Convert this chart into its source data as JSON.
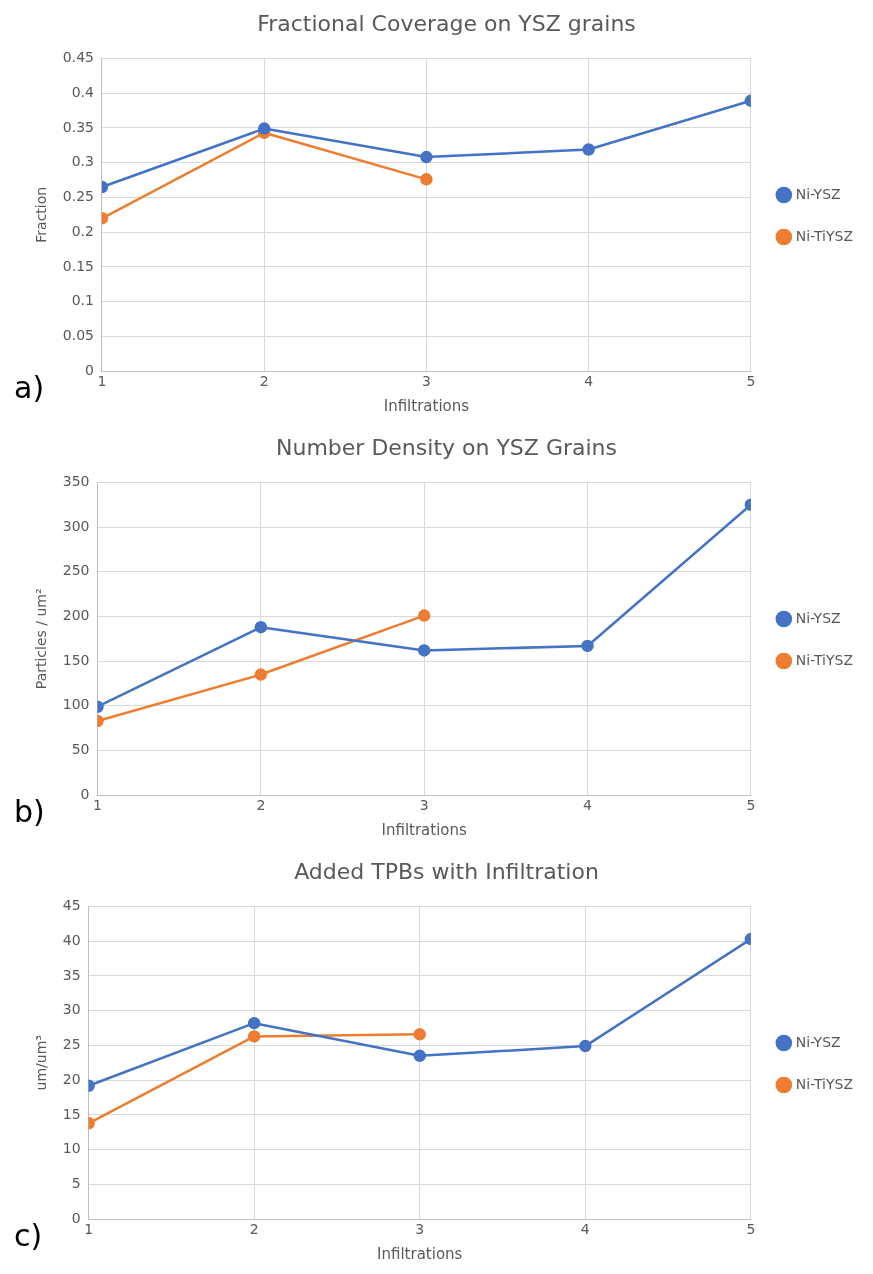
{
  "chart_data": [
    {
      "type": "line",
      "title": "Fractional Coverage on YSZ grains",
      "xlabel": "Infiltrations",
      "ylabel": "Fraction",
      "x": [
        1,
        2,
        3,
        4,
        5
      ],
      "xlim": [
        1,
        5
      ],
      "xticks": [
        1,
        2,
        3,
        4,
        5
      ],
      "ylim": [
        0,
        0.45
      ],
      "yticks": [
        0,
        0.05,
        0.1,
        0.15,
        0.2,
        0.25,
        0.3,
        0.35,
        0.4,
        0.45
      ],
      "grid": true,
      "legend": "right",
      "marker": "circle",
      "line_style": "solid",
      "annotations": [
        "a)"
      ],
      "series": [
        {
          "name": "Ni-YSZ",
          "color": "#4472c4",
          "values": [
            0.265,
            0.349,
            0.308,
            0.319,
            0.389
          ]
        },
        {
          "name": "Ni-TiYSZ",
          "color": "#ed7d31",
          "values": [
            0.22,
            0.343,
            0.276,
            null,
            null
          ]
        }
      ]
    },
    {
      "type": "line",
      "title": "Number Density on YSZ Grains",
      "xlabel": "Infiltrations",
      "ylabel": "Particles / um²",
      "x": [
        1,
        2,
        3,
        4,
        5
      ],
      "xlim": [
        1,
        5
      ],
      "xticks": [
        1,
        2,
        3,
        4,
        5
      ],
      "ylim": [
        0,
        350
      ],
      "yticks": [
        0,
        50,
        100,
        150,
        200,
        250,
        300,
        350
      ],
      "grid": true,
      "legend": "right",
      "marker": "circle",
      "line_style": "solid",
      "annotations": [
        "b)"
      ],
      "series": [
        {
          "name": "Ni-YSZ",
          "color": "#4472c4",
          "values": [
            99,
            188,
            162,
            167,
            325
          ]
        },
        {
          "name": "Ni-TiYSZ",
          "color": "#ed7d31",
          "values": [
            83,
            135,
            201,
            null,
            null
          ]
        }
      ]
    },
    {
      "type": "line",
      "title": "Added TPBs with Infiltration",
      "xlabel": "Infiltrations",
      "ylabel": "um/um³",
      "x": [
        1,
        2,
        3,
        4,
        5
      ],
      "xlim": [
        1,
        5
      ],
      "xticks": [
        1,
        2,
        3,
        4,
        5
      ],
      "ylim": [
        0,
        45
      ],
      "yticks": [
        0,
        5,
        10,
        15,
        20,
        25,
        30,
        35,
        40,
        45
      ],
      "grid": true,
      "legend": "right",
      "marker": "circle",
      "line_style": "solid",
      "annotations": [
        "c)"
      ],
      "series": [
        {
          "name": "Ni-YSZ",
          "color": "#4472c4",
          "values": [
            19.2,
            28.2,
            23.5,
            24.9,
            40.3
          ]
        },
        {
          "name": "Ni-TiYSZ",
          "color": "#ed7d31",
          "values": [
            13.8,
            26.3,
            26.6,
            null,
            null
          ]
        }
      ]
    }
  ]
}
